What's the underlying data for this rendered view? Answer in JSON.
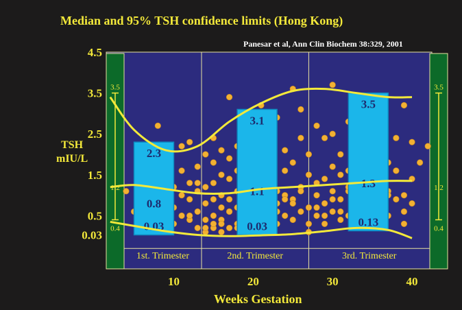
{
  "title": "Median and 95% TSH confidence limits  (Hong Kong)",
  "citation": "Panesar et al, Ann Clin Biochem 38:329, 2001",
  "colors": {
    "background": "#1c1b1b",
    "plot": "#2c2b7e",
    "accent": "#f3e93a",
    "box": "#1bb6ea",
    "box_text": "#1d2b6e",
    "side_bar": "#0c6a29",
    "dot": "#f2b133"
  },
  "chart_data": {
    "type": "scatter",
    "title": "Median and 95% TSH confidence limits  (Hong Kong)",
    "xlabel": "Weeks Gestation",
    "ylabel": [
      "TSH",
      "mIU/L"
    ],
    "xlim": [
      1.5,
      42.5
    ],
    "ylim": [
      -0.8,
      4.5
    ],
    "x_ticks": [
      10,
      20,
      30,
      40
    ],
    "y_ticks": [
      {
        "label": "4.5",
        "value": 4.5
      },
      {
        "label": "3.5",
        "value": 3.5
      },
      {
        "label": "2.5",
        "value": 2.5
      },
      {
        "label": "1.5",
        "value": 1.5
      },
      {
        "label": "0.5",
        "value": 0.5
      },
      {
        "label": "0.03",
        "value": 0.03
      }
    ],
    "trimesters": [
      {
        "label": "1st. Trimester",
        "x_start": 1.5,
        "x_end": 13.5,
        "box": {
          "x_start": 5,
          "x_end": 10,
          "top": 2.3,
          "median": 0.8,
          "bottom": 0.03
        }
      },
      {
        "label": "2nd. Trimester",
        "x_start": 13.5,
        "x_end": 27,
        "box": {
          "x_start": 18,
          "x_end": 23,
          "top": 3.1,
          "median": 1.1,
          "bottom": 0.03
        }
      },
      {
        "label": "3rd. Trimester",
        "x_start": 27,
        "x_end": 42.5,
        "box": {
          "x_start": 32,
          "x_end": 37,
          "top": 3.5,
          "median": 1.3,
          "bottom": 0.13
        }
      }
    ],
    "side_scale": {
      "upper": "3.5",
      "middle": "1.2",
      "lower": "0.4"
    },
    "curves": {
      "upper_limit": {
        "x": [
          2,
          5,
          9,
          13,
          17,
          21,
          25,
          29,
          33,
          37,
          40
        ],
        "y": [
          3.4,
          2.6,
          2.1,
          2.2,
          2.8,
          3.25,
          3.55,
          3.6,
          3.5,
          3.4,
          3.4
        ]
      },
      "median": {
        "x": [
          2,
          5,
          9,
          13,
          17,
          21,
          25,
          29,
          33,
          37,
          40
        ],
        "y": [
          1.2,
          1.25,
          1.15,
          1.05,
          1.05,
          1.15,
          1.2,
          1.25,
          1.3,
          1.35,
          1.35
        ]
      },
      "lower_limit": {
        "x": [
          2,
          5,
          9,
          13,
          17,
          21,
          25,
          29,
          33,
          37,
          40
        ],
        "y": [
          0.35,
          0.25,
          0.12,
          0.03,
          0.0,
          0.02,
          0.05,
          0.12,
          0.2,
          0.15,
          -0.05
        ]
      }
    },
    "points": {
      "x": [
        4,
        5,
        6,
        7,
        8,
        8,
        9,
        9,
        10,
        10,
        10,
        11,
        11,
        11,
        11,
        12,
        12,
        12,
        12,
        13,
        13,
        13,
        13,
        14,
        14,
        14,
        14,
        14,
        15,
        15,
        15,
        15,
        15,
        15,
        16,
        16,
        16,
        16,
        16,
        16,
        17,
        17,
        17,
        17,
        17,
        17,
        18,
        18,
        18,
        18,
        18,
        19,
        19,
        19,
        19,
        20,
        20,
        20,
        20,
        21,
        21,
        21,
        21,
        22,
        22,
        22,
        22,
        23,
        23,
        23,
        23,
        24,
        24,
        24,
        24,
        25,
        25,
        25,
        25,
        26,
        26,
        26,
        26,
        27,
        27,
        27,
        27,
        28,
        28,
        28,
        28,
        29,
        29,
        29,
        29,
        30,
        30,
        30,
        30,
        30,
        31,
        31,
        31,
        31,
        32,
        32,
        32,
        32,
        33,
        33,
        33,
        34,
        34,
        34,
        35,
        35,
        35,
        36,
        36,
        36,
        37,
        37,
        37,
        38,
        38,
        38,
        39,
        39,
        39,
        40,
        40,
        41,
        42,
        8,
        13,
        15,
        17,
        19,
        21,
        23,
        25,
        27,
        29,
        31,
        33,
        35,
        37,
        39,
        12,
        14,
        16,
        18,
        20,
        22,
        24,
        26,
        28,
        30,
        32,
        34,
        36,
        38,
        40
      ],
      "y": [
        1.1,
        0.6,
        1.3,
        0.9,
        2.7,
        0.5,
        0.8,
        1.4,
        0.7,
        1.2,
        0.3,
        0.5,
        1.0,
        1.6,
        2.2,
        0.4,
        0.9,
        1.3,
        2.3,
        0.2,
        0.6,
        1.1,
        1.7,
        0.1,
        0.4,
        0.8,
        1.2,
        2.0,
        0.2,
        0.5,
        0.9,
        1.3,
        1.8,
        2.4,
        0.1,
        0.4,
        0.7,
        1.0,
        1.5,
        2.1,
        0.2,
        0.6,
        0.9,
        1.4,
        1.9,
        3.4,
        0.3,
        0.7,
        1.1,
        1.6,
        2.2,
        0.2,
        0.5,
        1.2,
        2.0,
        0.3,
        0.8,
        1.4,
        2.6,
        0.4,
        0.9,
        1.5,
        3.2,
        0.2,
        0.7,
        1.3,
        2.3,
        0.3,
        0.8,
        1.1,
        2.9,
        0.5,
        1.0,
        1.6,
        2.1,
        0.4,
        0.9,
        1.8,
        3.6,
        0.6,
        1.2,
        2.4,
        3.1,
        0.1,
        0.7,
        1.5,
        2.0,
        0.5,
        1.0,
        1.3,
        2.7,
        0.3,
        0.8,
        1.4,
        2.4,
        0.6,
        1.1,
        1.7,
        2.5,
        3.7,
        0.4,
        0.9,
        1.5,
        2.0,
        0.5,
        1.1,
        1.6,
        2.8,
        0.3,
        1.0,
        3.3,
        0.6,
        1.4,
        2.2,
        0.4,
        1.2,
        3.0,
        0.7,
        1.5,
        2.6,
        0.5,
        1.1,
        1.8,
        0.9,
        1.6,
        2.4,
        0.3,
        1.0,
        3.2,
        1.4,
        2.3,
        1.8,
        2.2,
        1.5,
        1.3,
        0.3,
        0.6,
        0.4,
        0.2,
        0.6,
        0.8,
        0.3,
        0.5,
        0.6,
        0.7,
        0.8,
        1.0,
        0.6,
        0.5,
        0.2,
        0.3,
        0.2,
        0.5,
        0.7,
        0.9,
        1.1,
        0.7,
        0.9,
        1.2,
        1.4,
        0.9,
        1.6,
        0.8
      ]
    },
    "grid": false,
    "legend": "none"
  }
}
